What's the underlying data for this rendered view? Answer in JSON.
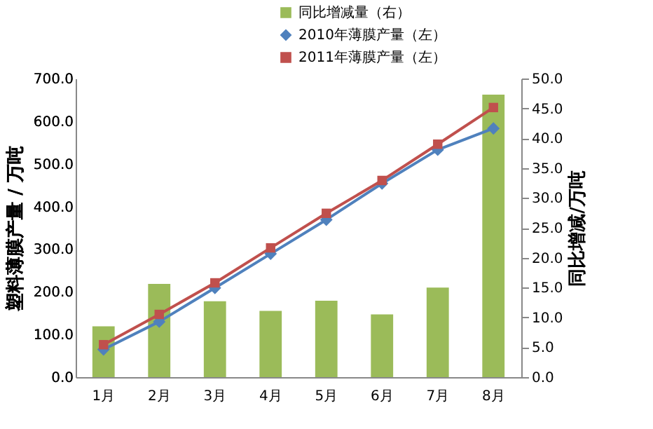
{
  "chart_data": {
    "type": "bar",
    "categories": [
      "1月",
      "2月",
      "3月",
      "4月",
      "5月",
      "6月",
      "7月",
      "8月"
    ],
    "series": [
      {
        "name": "同比增减量（右）",
        "axis": "y2",
        "color": "#9bbb59",
        "values": [
          8.5,
          15.6,
          12.7,
          11.1,
          12.8,
          10.5,
          15.0,
          47.3
        ]
      },
      {
        "name": "2010年薄膜产量（左）",
        "type": "line",
        "color": "#4f81bd",
        "marker": "diamond",
        "values": [
          65,
          130,
          209,
          289,
          369,
          454,
          533,
          583
        ]
      },
      {
        "name": "2011年薄膜产量（左）",
        "type": "line",
        "color": "#c0504d",
        "marker": "square",
        "values": [
          76,
          147,
          221,
          303,
          384,
          461,
          546,
          632
        ]
      }
    ],
    "ylabel": "塑料薄膜产量 / 万吨",
    "y2label": "同比增减/万吨",
    "ylim": [
      0,
      700
    ],
    "yticks": [
      {
        "value": 0,
        "label": "0.0"
      },
      {
        "value": 100,
        "label": "100.0"
      },
      {
        "value": 200,
        "label": "200.0"
      },
      {
        "value": 300,
        "label": "300.0"
      },
      {
        "value": 400,
        "label": "400.0"
      },
      {
        "value": 500,
        "label": "500.0"
      },
      {
        "value": 600,
        "label": "600.0"
      },
      {
        "value": 700,
        "label": "700.0"
      }
    ],
    "y2lim": [
      0,
      50
    ],
    "y2ticks": [
      {
        "value": 0,
        "label": "0.0"
      },
      {
        "value": 5,
        "label": "5.0"
      },
      {
        "value": 10,
        "label": "10.0"
      },
      {
        "value": 15,
        "label": "15.0"
      },
      {
        "value": 20,
        "label": "20.0"
      },
      {
        "value": 25,
        "label": "25.0"
      },
      {
        "value": 30,
        "label": "30.0"
      },
      {
        "value": 35,
        "label": "35.0"
      },
      {
        "value": 40,
        "label": "40.0"
      },
      {
        "value": 45,
        "label": "45.0"
      },
      {
        "value": 50,
        "label": "50.0"
      }
    ],
    "grid": false,
    "legend": "top"
  }
}
